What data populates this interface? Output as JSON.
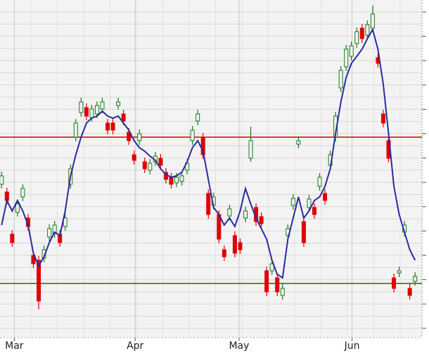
{
  "chart_data": {
    "type": "candlestick",
    "ylim": [
      0,
      480
    ],
    "xlim": [
      -0.3,
      79.3
    ],
    "xticks": [
      {
        "value": 2.4,
        "label": "Mar"
      },
      {
        "value": 25.2,
        "label": "Apr"
      },
      {
        "value": 44.8,
        "label": "May"
      },
      {
        "value": 66.1,
        "label": "Jun"
      }
    ],
    "grid": true,
    "up_color": "#1a7a1a",
    "down_color": "#e00000",
    "open": [
      218,
      207,
      147,
      178,
      200,
      170,
      117,
      110,
      113,
      143,
      148,
      147,
      158,
      218,
      285,
      320,
      327,
      313,
      318,
      325,
      305,
      305,
      330,
      318,
      292,
      260,
      280,
      250,
      238,
      250,
      255,
      235,
      228,
      220,
      222,
      238,
      280,
      308,
      285,
      205,
      188,
      175,
      125,
      173,
      145,
      135,
      170,
      255,
      185,
      172,
      95,
      95,
      85,
      60,
      145,
      188,
      275,
      165,
      185,
      185,
      215,
      205,
      245,
      285,
      355,
      385,
      400,
      418,
      440,
      430,
      440,
      398,
      318,
      280,
      85,
      92,
      150,
      70,
      80
    ],
    "high": [
      236,
      213,
      153,
      196,
      218,
      176,
      123,
      116,
      131,
      161,
      166,
      153,
      176,
      246,
      311,
      341,
      333,
      331,
      336,
      341,
      311,
      311,
      341,
      324,
      298,
      266,
      296,
      256,
      254,
      264,
      261,
      241,
      234,
      234,
      236,
      254,
      301,
      324,
      291,
      211,
      206,
      181,
      131,
      189,
      151,
      141,
      186,
      300,
      191,
      178,
      101,
      111,
      91,
      76,
      161,
      204,
      286,
      171,
      203,
      191,
      234,
      211,
      266,
      321,
      386,
      416,
      421,
      441,
      446,
      451,
      472,
      404,
      324,
      286,
      91,
      101,
      166,
      76,
      93
    ],
    "low": [
      212,
      189,
      129,
      172,
      194,
      152,
      99,
      40,
      107,
      137,
      142,
      129,
      152,
      212,
      279,
      314,
      309,
      307,
      312,
      319,
      289,
      289,
      324,
      302,
      274,
      246,
      274,
      234,
      232,
      244,
      239,
      219,
      212,
      214,
      216,
      232,
      274,
      302,
      254,
      169,
      182,
      134,
      109,
      167,
      114,
      119,
      164,
      250,
      159,
      156,
      59,
      89,
      59,
      54,
      139,
      182,
      269,
      129,
      179,
      169,
      209,
      189,
      239,
      279,
      349,
      379,
      394,
      412,
      419,
      424,
      434,
      384,
      299,
      249,
      64,
      86,
      144,
      54,
      74
    ],
    "close": [
      230,
      195,
      135,
      190,
      212,
      158,
      105,
      52,
      125,
      155,
      160,
      135,
      170,
      240,
      305,
      335,
      315,
      325,
      330,
      335,
      295,
      295,
      335,
      308,
      280,
      252,
      290,
      240,
      248,
      258,
      245,
      225,
      218,
      228,
      230,
      248,
      295,
      318,
      260,
      175,
      200,
      140,
      115,
      183,
      120,
      125,
      180,
      280,
      165,
      162,
      65,
      105,
      65,
      70,
      155,
      198,
      280,
      135,
      197,
      175,
      228,
      195,
      260,
      315,
      380,
      410,
      415,
      435,
      425,
      445,
      460,
      390,
      305,
      255,
      70,
      95,
      160,
      60,
      87
    ],
    "ma": {
      "color": "#2b2b9e",
      "values": [
        160,
        195,
        180,
        195,
        180,
        160,
        120,
        102,
        115,
        135,
        150,
        145,
        180,
        230,
        260,
        285,
        305,
        312,
        315,
        322,
        315,
        312,
        315,
        305,
        295,
        280,
        270,
        265,
        258,
        252,
        240,
        232,
        228,
        230,
        235,
        250,
        270,
        280,
        265,
        225,
        185,
        175,
        160,
        170,
        158,
        180,
        212,
        190,
        170,
        155,
        140,
        110,
        90,
        85,
        140,
        170,
        200,
        170,
        180,
        195,
        200,
        215,
        240,
        290,
        335,
        370,
        390,
        400,
        410,
        425,
        438,
        410,
        360,
        290,
        215,
        175,
        150,
        125,
        110
      ]
    },
    "hlines": [
      {
        "value": 285,
        "color": "#d00000"
      },
      {
        "value": 77,
        "color": "#1a6a1a"
      }
    ]
  }
}
